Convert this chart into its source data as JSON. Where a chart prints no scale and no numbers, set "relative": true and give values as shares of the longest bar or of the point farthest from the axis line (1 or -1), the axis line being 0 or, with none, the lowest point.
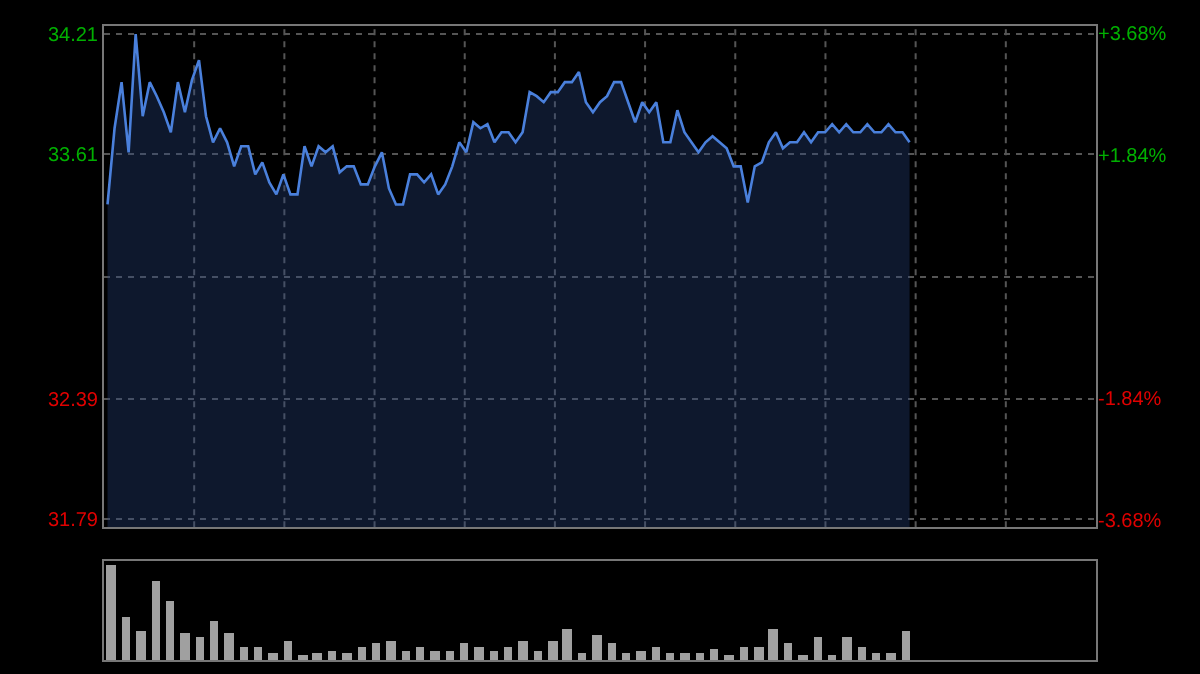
{
  "chart_data": [
    {
      "type": "area",
      "categories": [
        null,
        null,
        null,
        null,
        null,
        null,
        null,
        null,
        null,
        null,
        null,
        null,
        null,
        null,
        null,
        null,
        null,
        null,
        null,
        null,
        null,
        null,
        null,
        null,
        null,
        null,
        null,
        null,
        null,
        null,
        null,
        null,
        null,
        null,
        null,
        null,
        null,
        null,
        null,
        null,
        null,
        null,
        null,
        null,
        null,
        null,
        null,
        null,
        null,
        null,
        null,
        null,
        null,
        null,
        null,
        null,
        null,
        null,
        null,
        null,
        null,
        null,
        null,
        null,
        null,
        null,
        null,
        null,
        null,
        null,
        null,
        null,
        null,
        null,
        null,
        null,
        null,
        null,
        null,
        null,
        null,
        null,
        null,
        null,
        null,
        null,
        null,
        null,
        null,
        null,
        null,
        null,
        null,
        null,
        null,
        null,
        null,
        null,
        null,
        null,
        null,
        null,
        null,
        null,
        null,
        null,
        null,
        null,
        null,
        null,
        null,
        null,
        null,
        null,
        null,
        null,
        null,
        null,
        null,
        null,
        null,
        null,
        null,
        null,
        null,
        null,
        null,
        null,
        null,
        null,
        null,
        null,
        null,
        null,
        null,
        null,
        null,
        null,
        null,
        null,
        null
      ],
      "series": [
        {
          "color": "#4a80dc",
          "values": [
            33.36,
            33.74,
            33.97,
            33.62,
            34.21,
            33.8,
            33.97,
            33.9,
            33.82,
            33.72,
            33.97,
            33.82,
            33.98,
            34.08,
            33.8,
            33.67,
            33.74,
            33.67,
            33.55,
            33.65,
            33.65,
            33.51,
            33.57,
            33.47,
            33.41,
            33.51,
            33.41,
            33.41,
            33.65,
            33.55,
            33.65,
            33.62,
            33.65,
            33.52,
            33.55,
            33.55,
            33.46,
            33.46,
            33.55,
            33.62,
            33.44,
            33.36,
            33.36,
            33.51,
            33.51,
            33.47,
            33.51,
            33.41,
            33.46,
            33.55,
            33.67,
            33.62,
            33.77,
            33.74,
            33.76,
            33.67,
            33.72,
            33.72,
            33.67,
            33.72,
            33.92,
            33.9,
            33.87,
            33.92,
            33.92,
            33.97,
            33.97,
            34.02,
            33.87,
            33.82,
            33.87,
            33.9,
            33.97,
            33.97,
            33.87,
            33.77,
            33.87,
            33.82,
            33.87,
            33.67,
            33.67,
            33.83,
            33.72,
            33.67,
            33.62,
            33.67,
            33.7,
            33.67,
            33.64,
            33.55,
            33.55,
            33.37,
            33.55,
            33.57,
            33.67,
            33.72,
            33.64,
            33.67,
            33.67,
            33.72,
            33.67,
            33.72,
            33.72,
            33.76,
            33.72,
            33.76,
            33.72,
            33.72,
            33.76,
            33.72,
            33.72,
            33.76,
            33.72,
            33.72,
            33.67,
            null,
            null,
            null,
            null,
            null,
            null,
            null,
            null,
            null,
            null,
            null,
            null,
            null,
            null,
            null,
            null,
            null,
            null,
            null,
            null,
            null,
            null,
            null,
            null,
            null,
            null
          ]
        }
      ],
      "ylim": [
        31.75,
        34.25
      ],
      "yticks": [
        31.79,
        32.39,
        {
          "value": 33.0,
          "label": null
        },
        33.61,
        34.21
      ],
      "y2lim": [
        -3.79,
        3.79
      ],
      "y2ticks": [
        {
          "value": -3.68,
          "label": "-3.68%"
        },
        {
          "value": -1.84,
          "label": "-1.84%"
        },
        {
          "value": 1.84,
          "label": "+1.84%"
        },
        {
          "value": 3.68,
          "label": "+3.68%"
        }
      ],
      "grid": true
    },
    {
      "type": "bar",
      "relative": true,
      "categories": [
        null,
        null,
        null,
        null,
        null,
        null,
        null,
        null,
        null,
        null,
        null,
        null,
        null,
        null,
        null,
        null,
        null,
        null,
        null,
        null,
        null,
        null,
        null,
        null,
        null,
        null,
        null,
        null,
        null,
        null,
        null,
        null,
        null,
        null,
        null,
        null,
        null,
        null,
        null,
        null,
        null,
        null,
        null,
        null,
        null,
        null,
        null,
        null,
        null,
        null,
        null,
        null,
        null,
        null,
        null
      ],
      "series": [
        {
          "color": "#a0a0a0",
          "values": [
            1.0,
            0.45,
            0.31,
            0.83,
            0.63,
            0.29,
            0.24,
            0.41,
            0.29,
            0.14,
            0.13,
            0.07,
            0.21,
            0.06,
            0.07,
            0.09,
            0.07,
            0.14,
            0.18,
            0.21,
            0.09,
            0.14,
            0.09,
            0.09,
            0.18,
            0.14,
            0.09,
            0.14,
            0.2,
            0.09,
            0.2,
            0.33,
            0.07,
            0.27,
            0.18,
            0.07,
            0.09,
            0.14,
            0.07,
            0.07,
            0.07,
            0.11,
            0.06,
            0.13,
            0.14,
            0.33,
            0.19,
            0.06,
            0.25,
            0.06,
            0.25,
            0.14,
            0.07,
            0.07,
            0.31
          ]
        }
      ]
    }
  ]
}
